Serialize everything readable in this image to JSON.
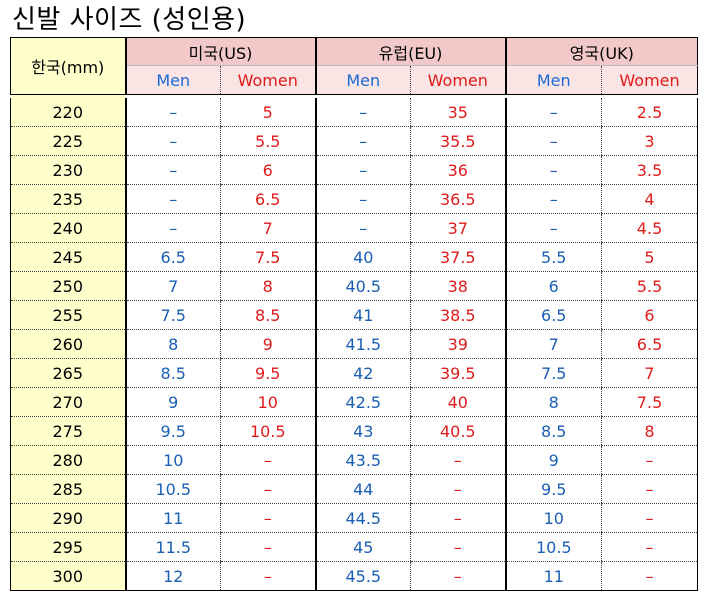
{
  "title": "신발 사이즈 (성인용)",
  "header": {
    "korea": "한국(mm)",
    "groups": [
      "미국(US)",
      "유럽(EU)",
      "영국(UK)"
    ],
    "men": "Men",
    "women": "Women"
  },
  "colors": {
    "men": "#1a5fb4",
    "women": "#e01b1b",
    "korea_bg": "#ffffcc",
    "group_bg": "#f2c8c8"
  },
  "rows": [
    [
      "220",
      "–",
      "5",
      "–",
      "35",
      "–",
      "2.5"
    ],
    [
      "225",
      "–",
      "5.5",
      "–",
      "35.5",
      "–",
      "3"
    ],
    [
      "230",
      "–",
      "6",
      "–",
      "36",
      "–",
      "3.5"
    ],
    [
      "235",
      "–",
      "6.5",
      "–",
      "36.5",
      "–",
      "4"
    ],
    [
      "240",
      "–",
      "7",
      "–",
      "37",
      "–",
      "4.5"
    ],
    [
      "245",
      "6.5",
      "7.5",
      "40",
      "37.5",
      "5.5",
      "5"
    ],
    [
      "250",
      "7",
      "8",
      "40.5",
      "38",
      "6",
      "5.5"
    ],
    [
      "255",
      "7.5",
      "8.5",
      "41",
      "38.5",
      "6.5",
      "6"
    ],
    [
      "260",
      "8",
      "9",
      "41.5",
      "39",
      "7",
      "6.5"
    ],
    [
      "265",
      "8.5",
      "9.5",
      "42",
      "39.5",
      "7.5",
      "7"
    ],
    [
      "270",
      "9",
      "10",
      "42.5",
      "40",
      "8",
      "7.5"
    ],
    [
      "275",
      "9.5",
      "10.5",
      "43",
      "40.5",
      "8.5",
      "8"
    ],
    [
      "280",
      "10",
      "–",
      "43.5",
      "–",
      "9",
      "–"
    ],
    [
      "285",
      "10.5",
      "–",
      "44",
      "–",
      "9.5",
      "–"
    ],
    [
      "290",
      "11",
      "–",
      "44.5",
      "–",
      "10",
      "–"
    ],
    [
      "295",
      "11.5",
      "–",
      "45",
      "–",
      "10.5",
      "–"
    ],
    [
      "300",
      "12",
      "–",
      "45.5",
      "–",
      "11",
      "–"
    ]
  ]
}
